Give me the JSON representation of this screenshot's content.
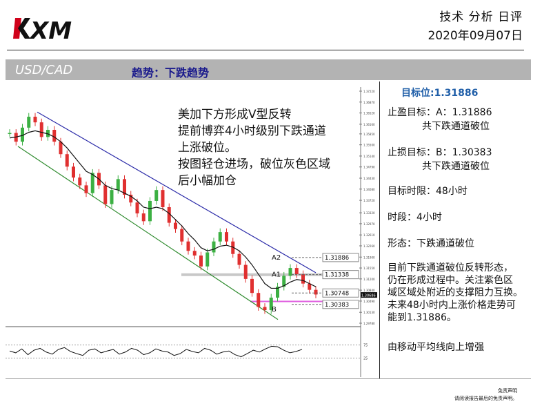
{
  "header": {
    "brand": "XM",
    "report_type": "技术 分析 日评",
    "date": "2020年09月07日"
  },
  "bar": {
    "pair": "USD/CAD",
    "trend": "趋势：下跌趋势"
  },
  "annotation": {
    "lines": [
      "美加下方形成V型反转",
      "提前博弈4小时级别下跌通道",
      "上涨破位。",
      "按图轻仓进场，破位灰色区域",
      "后小幅加仓"
    ]
  },
  "sidebar": {
    "target": "目标位:1.31886",
    "tp_line1": "止盈目标：A：1.31886",
    "tp_line2": "共下跌通道破位",
    "sl_line1": "止损目标：B：1.30383",
    "sl_line2": "共下跌通道破位",
    "time_limit": "目标时限：48小时",
    "timeframe": "时段：4小时",
    "pattern": "形态：下跌通道破位",
    "desc": [
      "目前下跌通道破位反转形态，",
      "仍在形成过程中。关注紫色区",
      "域区域处附近的支撑阻力互换。",
      "未来48小时内上涨价格走势可",
      "能到1.31886。"
    ],
    "ma_note": "由移动平均线向上增强"
  },
  "footer": {
    "l1": "免责声明",
    "l2": "请阅读报告最后的免责声明。"
  },
  "chart_data": {
    "type": "line",
    "title": "",
    "y_ticks": [
      "1.37220",
      "1.36870",
      "1.36520",
      "1.36160",
      "1.35850",
      "1.35500",
      "1.35140",
      "1.34790",
      "1.34430",
      "1.34080",
      "1.33720",
      "1.33320",
      "1.32970",
      "1.32610",
      "1.32260",
      "1.31900",
      "1.31550",
      "1.31200",
      "1.30840",
      "1.30490",
      "1.30130",
      "1.29780"
    ],
    "ylim": [
      1.2978,
      1.3722
    ],
    "levels": [
      {
        "label": "A2",
        "value": "1.31886",
        "v": 1.31886
      },
      {
        "label": "A1",
        "value": "1.31338",
        "v": 1.31338
      },
      {
        "label": "",
        "value": "1.30748",
        "v": 1.30748
      },
      {
        "label": "B",
        "value": "1.30383",
        "v": 1.30383
      }
    ],
    "current_price": "1.30686",
    "price": [
      1.3588,
      1.356,
      1.3605,
      1.364,
      1.3622,
      1.3575,
      1.3598,
      1.356,
      1.352,
      1.348,
      1.3445,
      1.342,
      1.3395,
      1.346,
      1.342,
      1.336,
      1.3405,
      1.344,
      1.339,
      1.3365,
      1.333,
      1.3305,
      1.337,
      1.3405,
      1.335,
      1.33,
      1.328,
      1.324,
      1.321,
      1.3195,
      1.316,
      1.3205,
      1.324,
      1.327,
      1.324,
      1.32,
      1.3165,
      1.312,
      1.3075,
      1.303,
      1.302,
      1.306,
      1.3095,
      1.313,
      1.3155,
      1.3135,
      1.3105,
      1.3085,
      1.307
    ],
    "ma": [
      1.3572,
      1.3575,
      1.358,
      1.359,
      1.3595,
      1.359,
      1.3585,
      1.3575,
      1.356,
      1.354,
      1.3515,
      1.349,
      1.3465,
      1.3455,
      1.344,
      1.342,
      1.341,
      1.3405,
      1.3395,
      1.3385,
      1.337,
      1.335,
      1.3345,
      1.335,
      1.3345,
      1.333,
      1.331,
      1.329,
      1.3265,
      1.3245,
      1.322,
      1.321,
      1.3215,
      1.3225,
      1.3228,
      1.3222,
      1.321,
      1.319,
      1.3165,
      1.3135,
      1.3105,
      1.309,
      1.309,
      1.3098,
      1.311,
      1.3118,
      1.3115,
      1.3105,
      1.3095
    ],
    "channel": {
      "upper": [
        [
          0,
          1.3655
        ],
        [
          48,
          1.314
        ]
      ],
      "lower": [
        [
          0,
          1.3545
        ],
        [
          48,
          1.299
        ]
      ]
    },
    "oscillator": {
      "levels": [
        "75",
        "25"
      ],
      "values": [
        52,
        45,
        60,
        38,
        55,
        62,
        48,
        40,
        58,
        65,
        50,
        42,
        35,
        55,
        60,
        45,
        52,
        58,
        40,
        48,
        62,
        55,
        38,
        45,
        60,
        52,
        48,
        35,
        42,
        58,
        50,
        45,
        62,
        55,
        40,
        48,
        52,
        38,
        30,
        42,
        55,
        48,
        60,
        70,
        68,
        55,
        45,
        50,
        58
      ]
    }
  }
}
